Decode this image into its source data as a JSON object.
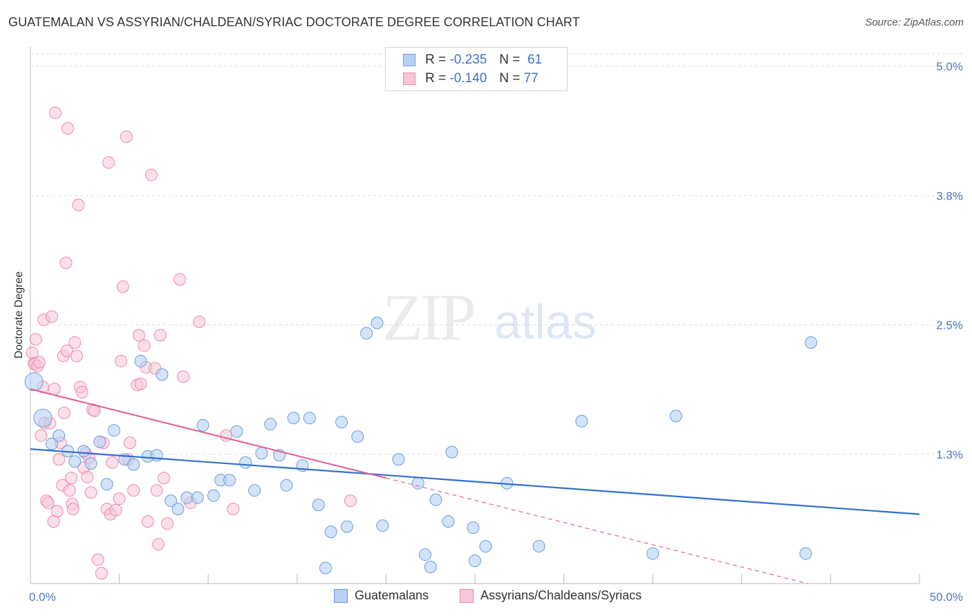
{
  "title": "GUATEMALAN VS ASSYRIAN/CHALDEAN/SYRIAC DOCTORATE DEGREE CORRELATION CHART",
  "source": "Source: ZipAtlas.com",
  "watermark": {
    "zip": "ZIP",
    "atlas": "atlas"
  },
  "colors": {
    "blue_fill": "#b8d1f3",
    "blue_stroke": "#6b9be0",
    "blue_line": "#2f6fcf",
    "pink_fill": "#f9c6d6",
    "pink_stroke": "#e98aa9",
    "pink_line": "#e0669a",
    "tick_label": "#4a78c8",
    "grid": "#dddddd"
  },
  "legend": {
    "rows": [
      {
        "r_label": "R =",
        "r_value": "-0.235",
        "n_label": "N =",
        "n_value": "61",
        "color": "#b8d1f3",
        "stroke": "#6b9be0"
      },
      {
        "r_label": "R =",
        "r_value": "-0.140",
        "n_label": "N =",
        "n_value": "77",
        "color": "#f9c6d6",
        "stroke": "#e98aa9"
      }
    ]
  },
  "chart_data": {
    "type": "scatter",
    "title": "GUATEMALAN VS ASSYRIAN/CHALDEAN/SYRIAC DOCTORATE DEGREE CORRELATION CHART",
    "xlabel": "",
    "ylabel": "Doctorate Degree",
    "xlim": [
      0,
      50
    ],
    "ylim": [
      0,
      5.0
    ],
    "x_tick_labels": [
      "0.0%",
      "50.0%"
    ],
    "y_ticks": [
      1.25,
      2.5,
      3.75,
      5.0
    ],
    "y_tick_labels": [
      "1.3%",
      "2.5%",
      "3.8%",
      "5.0%"
    ],
    "grid": true,
    "legend_position": "top-center",
    "series": [
      {
        "name": "Guatemalans",
        "color": "#b8d1f3",
        "trend": {
          "x": [
            0,
            50
          ],
          "y": [
            1.3,
            0.67
          ]
        },
        "points": [
          {
            "x": 0.2,
            "y": 1.95,
            "big": true
          },
          {
            "x": 0.7,
            "y": 1.6,
            "big": true
          },
          {
            "x": 1.2,
            "y": 1.35
          },
          {
            "x": 1.6,
            "y": 1.43
          },
          {
            "x": 2.1,
            "y": 1.28
          },
          {
            "x": 2.5,
            "y": 1.18
          },
          {
            "x": 3.0,
            "y": 1.28
          },
          {
            "x": 3.4,
            "y": 1.16
          },
          {
            "x": 3.9,
            "y": 1.37
          },
          {
            "x": 4.3,
            "y": 0.96
          },
          {
            "x": 4.7,
            "y": 1.48
          },
          {
            "x": 5.3,
            "y": 1.2
          },
          {
            "x": 5.8,
            "y": 1.15
          },
          {
            "x": 6.2,
            "y": 2.15
          },
          {
            "x": 6.6,
            "y": 1.23
          },
          {
            "x": 7.1,
            "y": 1.24
          },
          {
            "x": 7.4,
            "y": 2.02
          },
          {
            "x": 7.9,
            "y": 0.8
          },
          {
            "x": 8.3,
            "y": 0.72
          },
          {
            "x": 8.8,
            "y": 0.83
          },
          {
            "x": 9.4,
            "y": 0.83
          },
          {
            "x": 9.7,
            "y": 1.53
          },
          {
            "x": 10.3,
            "y": 0.85
          },
          {
            "x": 10.7,
            "y": 1.0
          },
          {
            "x": 11.2,
            "y": 1.0
          },
          {
            "x": 11.6,
            "y": 1.47
          },
          {
            "x": 12.1,
            "y": 1.17
          },
          {
            "x": 12.6,
            "y": 0.9
          },
          {
            "x": 13.0,
            "y": 1.26
          },
          {
            "x": 13.5,
            "y": 1.54
          },
          {
            "x": 14.0,
            "y": 1.24
          },
          {
            "x": 14.4,
            "y": 0.95
          },
          {
            "x": 14.8,
            "y": 1.6
          },
          {
            "x": 15.3,
            "y": 1.14
          },
          {
            "x": 15.7,
            "y": 1.6
          },
          {
            "x": 16.2,
            "y": 0.76
          },
          {
            "x": 16.6,
            "y": 0.15
          },
          {
            "x": 16.9,
            "y": 0.5
          },
          {
            "x": 17.5,
            "y": 1.56
          },
          {
            "x": 17.8,
            "y": 0.55
          },
          {
            "x": 18.4,
            "y": 1.42
          },
          {
            "x": 18.9,
            "y": 2.42
          },
          {
            "x": 19.5,
            "y": 2.52
          },
          {
            "x": 19.8,
            "y": 0.56
          },
          {
            "x": 20.7,
            "y": 1.2
          },
          {
            "x": 21.8,
            "y": 0.97
          },
          {
            "x": 22.2,
            "y": 0.28
          },
          {
            "x": 22.5,
            "y": 0.16
          },
          {
            "x": 22.8,
            "y": 0.81
          },
          {
            "x": 23.5,
            "y": 0.6
          },
          {
            "x": 23.7,
            "y": 1.27
          },
          {
            "x": 24.9,
            "y": 0.54
          },
          {
            "x": 25.0,
            "y": 0.22
          },
          {
            "x": 25.6,
            "y": 0.36
          },
          {
            "x": 26.8,
            "y": 0.97
          },
          {
            "x": 28.6,
            "y": 0.36
          },
          {
            "x": 31.0,
            "y": 1.57
          },
          {
            "x": 35.0,
            "y": 0.29
          },
          {
            "x": 36.3,
            "y": 1.62
          },
          {
            "x": 43.6,
            "y": 0.29
          },
          {
            "x": 43.9,
            "y": 2.33
          }
        ]
      },
      {
        "name": "Assyrians/Chaldeans/Syriacs",
        "color": "#f9c6d6",
        "trend": {
          "x": [
            0,
            20
          ],
          "y": [
            1.88,
            1.02
          ]
        },
        "trend_extension": {
          "x": [
            20,
            50
          ],
          "y": [
            1.02,
            -0.27
          ]
        },
        "points": [
          {
            "x": 0.1,
            "y": 2.23
          },
          {
            "x": 0.2,
            "y": 2.13
          },
          {
            "x": 0.25,
            "y": 2.12
          },
          {
            "x": 0.3,
            "y": 2.36
          },
          {
            "x": 0.4,
            "y": 2.1
          },
          {
            "x": 0.5,
            "y": 2.14
          },
          {
            "x": 0.6,
            "y": 1.43
          },
          {
            "x": 0.7,
            "y": 1.9
          },
          {
            "x": 0.75,
            "y": 2.55
          },
          {
            "x": 0.8,
            "y": 1.55
          },
          {
            "x": 0.9,
            "y": 0.8
          },
          {
            "x": 1.0,
            "y": 0.78
          },
          {
            "x": 1.1,
            "y": 1.55
          },
          {
            "x": 1.2,
            "y": 2.58
          },
          {
            "x": 1.3,
            "y": 0.6
          },
          {
            "x": 1.35,
            "y": 1.88
          },
          {
            "x": 1.4,
            "y": 4.55
          },
          {
            "x": 1.5,
            "y": 0.7
          },
          {
            "x": 1.6,
            "y": 1.2
          },
          {
            "x": 1.7,
            "y": 1.36
          },
          {
            "x": 1.8,
            "y": 0.95
          },
          {
            "x": 1.85,
            "y": 2.2
          },
          {
            "x": 1.9,
            "y": 1.65
          },
          {
            "x": 2.0,
            "y": 3.1
          },
          {
            "x": 2.05,
            "y": 2.25
          },
          {
            "x": 2.1,
            "y": 4.4
          },
          {
            "x": 2.2,
            "y": 0.9
          },
          {
            "x": 2.3,
            "y": 1.02
          },
          {
            "x": 2.35,
            "y": 0.77
          },
          {
            "x": 2.4,
            "y": 0.72
          },
          {
            "x": 2.5,
            "y": 2.33
          },
          {
            "x": 2.6,
            "y": 2.2
          },
          {
            "x": 2.7,
            "y": 3.66
          },
          {
            "x": 2.8,
            "y": 1.9
          },
          {
            "x": 2.9,
            "y": 1.85
          },
          {
            "x": 3.0,
            "y": 1.12
          },
          {
            "x": 3.1,
            "y": 1.26
          },
          {
            "x": 3.2,
            "y": 1.03
          },
          {
            "x": 3.3,
            "y": 1.22
          },
          {
            "x": 3.4,
            "y": 0.88
          },
          {
            "x": 3.5,
            "y": 1.68
          },
          {
            "x": 3.6,
            "y": 1.67
          },
          {
            "x": 3.8,
            "y": 0.23
          },
          {
            "x": 4.0,
            "y": 0.1
          },
          {
            "x": 4.1,
            "y": 1.36
          },
          {
            "x": 4.3,
            "y": 0.72
          },
          {
            "x": 4.4,
            "y": 4.07
          },
          {
            "x": 4.5,
            "y": 0.67
          },
          {
            "x": 4.6,
            "y": 1.17
          },
          {
            "x": 4.8,
            "y": 0.71
          },
          {
            "x": 5.0,
            "y": 0.82
          },
          {
            "x": 5.1,
            "y": 2.15
          },
          {
            "x": 5.2,
            "y": 2.87
          },
          {
            "x": 5.4,
            "y": 4.32
          },
          {
            "x": 5.5,
            "y": 1.2
          },
          {
            "x": 5.6,
            "y": 1.36
          },
          {
            "x": 5.8,
            "y": 0.9
          },
          {
            "x": 6.0,
            "y": 1.92
          },
          {
            "x": 6.1,
            "y": 2.4
          },
          {
            "x": 6.2,
            "y": 1.93
          },
          {
            "x": 6.4,
            "y": 2.3
          },
          {
            "x": 6.5,
            "y": 2.09
          },
          {
            "x": 6.6,
            "y": 0.6
          },
          {
            "x": 6.8,
            "y": 3.95
          },
          {
            "x": 7.0,
            "y": 2.08
          },
          {
            "x": 7.1,
            "y": 0.9
          },
          {
            "x": 7.2,
            "y": 0.38
          },
          {
            "x": 7.3,
            "y": 2.4
          },
          {
            "x": 7.5,
            "y": 1.02
          },
          {
            "x": 7.7,
            "y": 0.58
          },
          {
            "x": 8.4,
            "y": 2.94
          },
          {
            "x": 8.6,
            "y": 2.0
          },
          {
            "x": 9.0,
            "y": 0.78
          },
          {
            "x": 9.5,
            "y": 2.53
          },
          {
            "x": 11.0,
            "y": 1.43
          },
          {
            "x": 11.4,
            "y": 0.72
          },
          {
            "x": 18.0,
            "y": 0.8
          }
        ]
      }
    ]
  },
  "bottom_legend": {
    "items": [
      {
        "label": "Guatemalans",
        "color": "#b8d1f3",
        "stroke": "#6b9be0"
      },
      {
        "label": "Assyrians/Chaldeans/Syriacs",
        "color": "#f9c6d6",
        "stroke": "#e98aa9"
      }
    ]
  }
}
